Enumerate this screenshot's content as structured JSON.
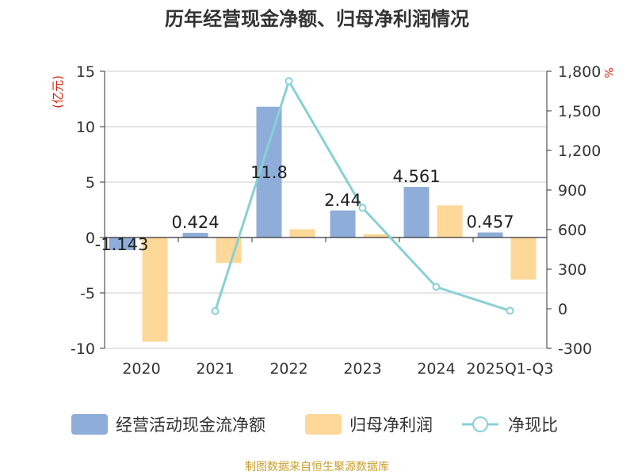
{
  "chart_data": {
    "type": "bar",
    "title": "历年经营现金净额、归母净利润情况",
    "categories": [
      "2020",
      "2021",
      "2022",
      "2023",
      "2024",
      "2025Q1-Q3"
    ],
    "ylabel_left": "(亿元)",
    "ylabel_right": "%",
    "ylim_left": [
      -10,
      15
    ],
    "ylim_right": [
      -300,
      1800
    ],
    "yticks_left": [
      "15",
      "10",
      "5",
      "0",
      "-5",
      "-10"
    ],
    "yticks_right": [
      "1,800",
      "1,500",
      "1,200",
      "900",
      "600",
      "300",
      "0",
      "-300"
    ],
    "series": [
      {
        "name": "经营活动现金流净额",
        "type": "bar",
        "axis": "left",
        "color": "#8eadd9",
        "values": [
          -1.143,
          0.424,
          11.8,
          2.44,
          4.561,
          0.457
        ],
        "labels": [
          "-1.143",
          "0.424",
          "11.8",
          "2.44",
          "4.561",
          "0.457"
        ]
      },
      {
        "name": "归母净利润",
        "type": "bar",
        "axis": "left",
        "color": "#fdd898",
        "values": [
          -9.4,
          -2.3,
          0.75,
          0.3,
          2.9,
          -3.8
        ]
      },
      {
        "name": "净现比",
        "type": "line",
        "axis": "right",
        "color": "#87d1d6",
        "values": [
          null,
          -18,
          1725,
          765,
          165,
          -15
        ]
      }
    ],
    "legend_position": "bottom",
    "source": "制图数据来自恒生聚源数据库"
  }
}
